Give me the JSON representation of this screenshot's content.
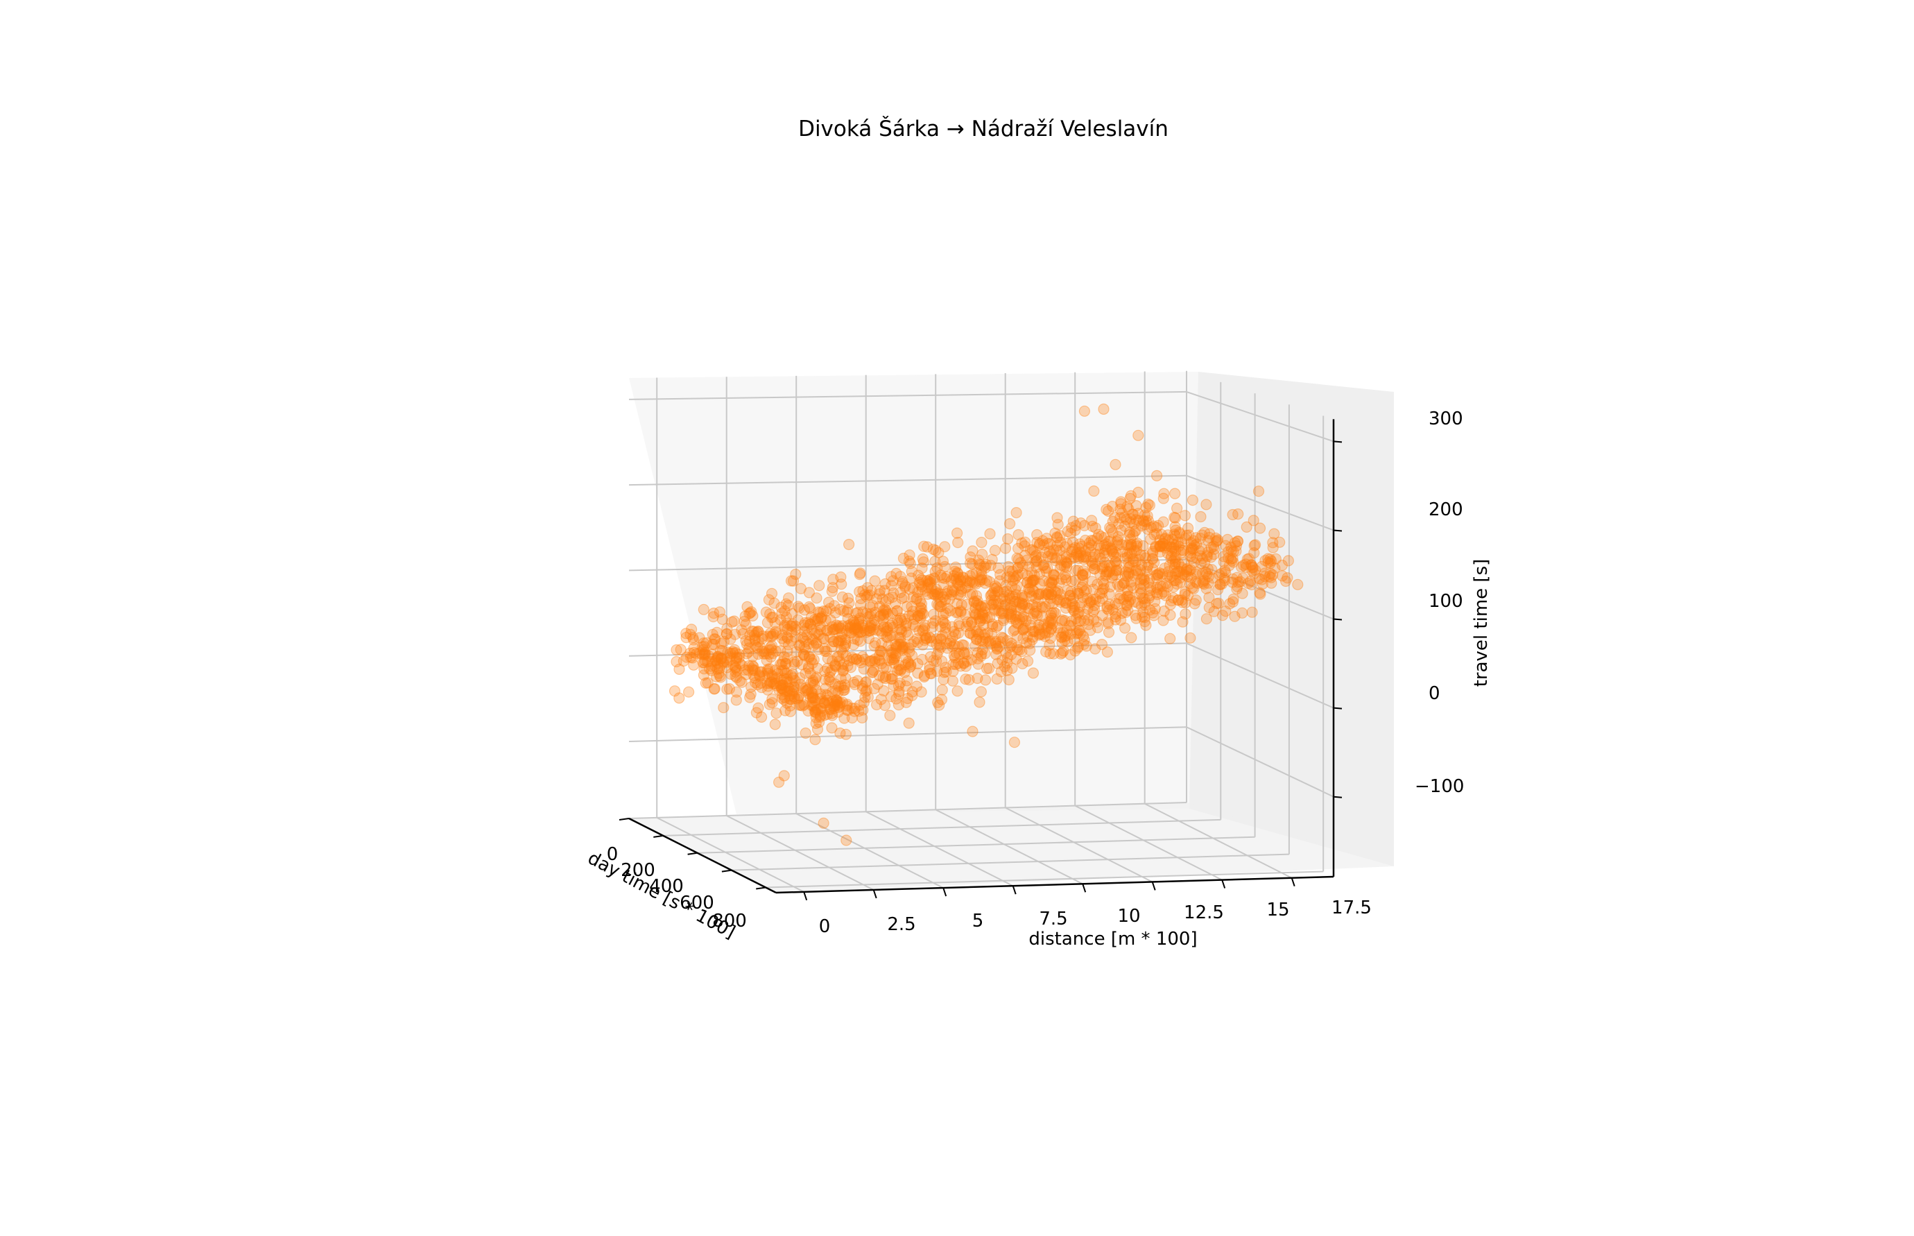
{
  "chart_data": {
    "type": "scatter",
    "projection": "3d",
    "title": "Divoká Šárka → Nádraží Veleslavín",
    "xlabel": "distance [m * 100]",
    "ylabel": "day time [s * 100]",
    "zlabel": "travel time [s]",
    "x_ticks": [
      "0",
      "2.5",
      "5",
      "7.5",
      "10",
      "12.5",
      "15",
      "17.5"
    ],
    "y_ticks": [
      "0",
      "200",
      "400",
      "600",
      "800"
    ],
    "z_ticks": [
      "−100",
      "0",
      "100",
      "200",
      "300"
    ],
    "xlim": [
      -1,
      19
    ],
    "ylim": [
      0,
      860
    ],
    "zlim": [
      -190,
      325
    ],
    "grid": true,
    "marker_color": "#ff7f0e",
    "marker_alpha": 0.3,
    "trend": {
      "z_at_x0": 5,
      "z_per_x": 8.5,
      "noise_sd": 20,
      "point_count": 2000
    },
    "outlier_points": [
      {
        "x": 0.3,
        "y": 300,
        "z": 1
      },
      {
        "x": 1.5,
        "y": 500,
        "z": -95
      },
      {
        "x": 1.8,
        "y": 420,
        "z": -110
      },
      {
        "x": 2.3,
        "y": 600,
        "z": -140
      },
      {
        "x": 2.5,
        "y": 700,
        "z": -150
      },
      {
        "x": 13.5,
        "y": 300,
        "z": 300
      },
      {
        "x": 14.2,
        "y": 500,
        "z": 285
      },
      {
        "x": 14.8,
        "y": 200,
        "z": 295
      },
      {
        "x": 17.6,
        "y": 650,
        "z": 230
      },
      {
        "x": 17.8,
        "y": 700,
        "z": 175
      }
    ]
  }
}
